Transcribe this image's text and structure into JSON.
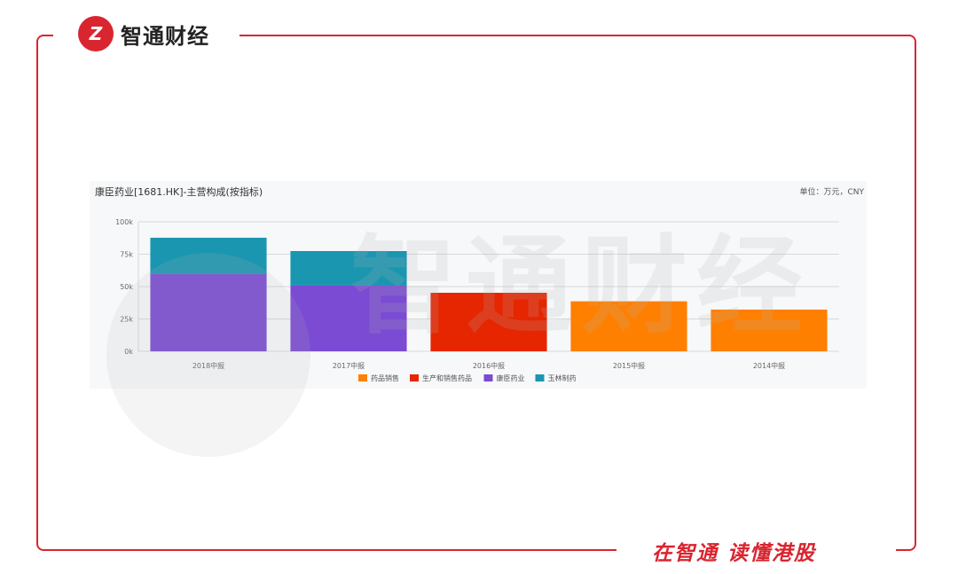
{
  "brand": {
    "logo_text": "智通财经",
    "slogan": "在智通  读懂港股",
    "color": "#d9252f"
  },
  "chart_data": {
    "type": "bar",
    "stacked": true,
    "title": "康臣药业[1681.HK]-主营构成(按指标)",
    "unit": "单位：万元，CNY",
    "categories": [
      "2018中报",
      "2017中报",
      "2016中报",
      "2015中报",
      "2014中报"
    ],
    "ylim": [
      0,
      100000
    ],
    "yticks": [
      "0k",
      "25k",
      "50k",
      "75k",
      "100k"
    ],
    "yticks_values": [
      0,
      25000,
      50000,
      75000,
      100000
    ],
    "grid": true,
    "legend_position": "bottom",
    "series": [
      {
        "name": "药品销售",
        "color": "#ff7f00",
        "values": [
          0,
          0,
          0,
          38600,
          32200
        ]
      },
      {
        "name": "生产和销售药品",
        "color": "#e52600",
        "values": [
          0,
          0,
          45200,
          0,
          0
        ]
      },
      {
        "name": "康臣药业",
        "color": "#7b4bd3",
        "values": [
          59600,
          50700,
          0,
          0,
          0
        ]
      },
      {
        "name": "玉林制药",
        "color": "#1b96b0",
        "values": [
          28100,
          26700,
          0,
          0,
          0
        ]
      }
    ]
  }
}
